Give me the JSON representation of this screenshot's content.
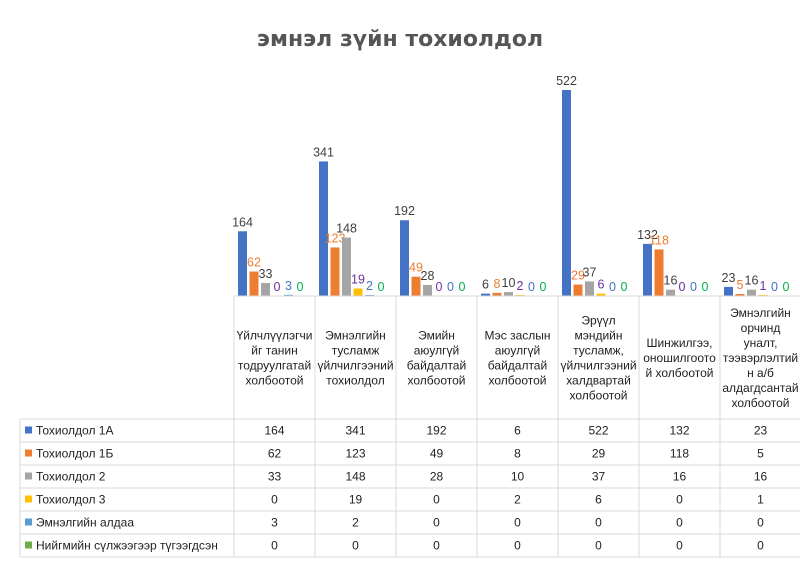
{
  "chart_data": {
    "type": "bar",
    "title": "эмнэл зүйн тохиолдол",
    "categories": [
      [
        "Үйлчлүүлэгчи",
        "йг танин",
        "тодруулгатай",
        "холбоотой"
      ],
      [
        "Эмнэлгийн",
        "тусламж",
        "үйлчилгээний",
        "тохиолдол"
      ],
      [
        "Эмийн",
        "аюулгүй",
        "байдалтай",
        "холбоотой"
      ],
      [
        "Мэс заслын",
        "аюулгүй",
        "байдалтай",
        "холбоотой"
      ],
      [
        "Эрүүл",
        "мэндийн",
        "тусламж,",
        "үйлчилгээний",
        "халдвартай",
        "холбоотой"
      ],
      [
        "Шинжилгээ,",
        "оношилгоото",
        "й холбоотой"
      ],
      [
        "Эмнэлгийн",
        "орчинд",
        "уналт,",
        "тээвэрлэлтий",
        "н а/б",
        "алдагдсантай",
        "холбоотой"
      ]
    ],
    "series": [
      {
        "name": "Тохиолдол 1А",
        "color": "#4472c4",
        "values": [
          164,
          341,
          192,
          6,
          522,
          132,
          23
        ]
      },
      {
        "name": "Тохиолдол 1Б",
        "color": "#ed7d31",
        "values": [
          62,
          123,
          49,
          8,
          29,
          118,
          5
        ]
      },
      {
        "name": "Тохиолдол 2",
        "color": "#a5a5a5",
        "values": [
          33,
          148,
          28,
          10,
          37,
          16,
          16
        ]
      },
      {
        "name": "Тохиолдол 3",
        "color": "#ffc000",
        "values": [
          0,
          19,
          0,
          2,
          6,
          0,
          1
        ]
      },
      {
        "name": "Эмнэлгийн алдаа",
        "color": "#5b9bd5",
        "values": [
          3,
          2,
          0,
          0,
          0,
          0,
          0
        ]
      },
      {
        "name": "Нийгмийн сүлжээгээр түгээгдсэн",
        "color": "#70ad47",
        "values": [
          0,
          0,
          0,
          0,
          0,
          0,
          0
        ]
      }
    ],
    "label_colors": [
      "#404040",
      "#ed7d31",
      "#404040",
      "#7030a0",
      "#4472c4",
      "#00b050"
    ],
    "ylim": [
      0,
      522
    ],
    "legend": "data-table",
    "grid": false
  }
}
